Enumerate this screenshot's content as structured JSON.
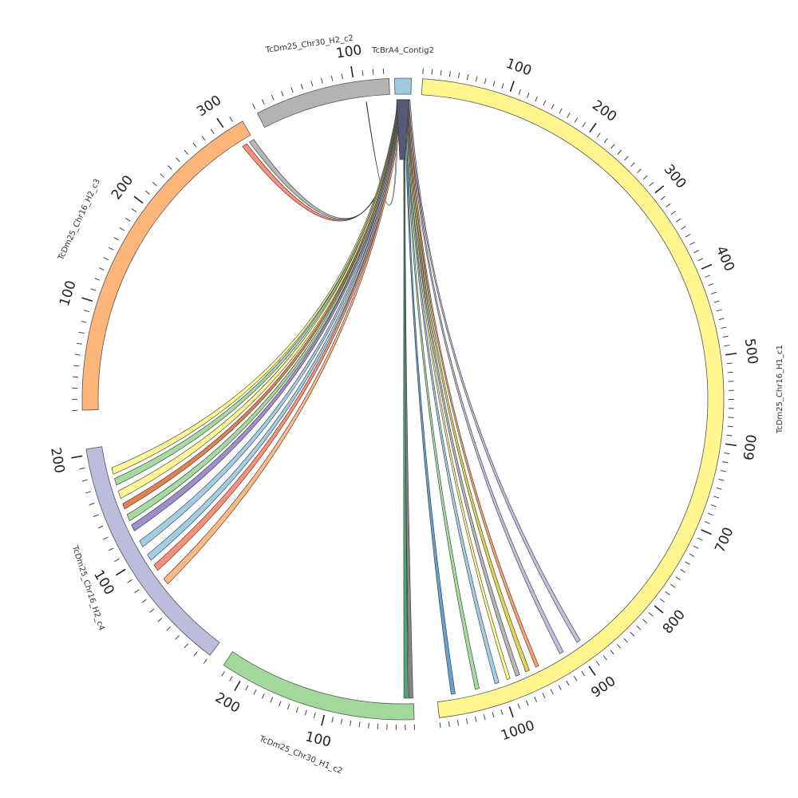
{
  "diagram": {
    "type": "circos",
    "segments": [
      {
        "id": "contig2",
        "name": "TcBrA4_Contig2",
        "length": 6,
        "color": "#9ecae1",
        "ticks": []
      },
      {
        "id": "h1c1",
        "name": "TcDm25_Chr16_H1_c1",
        "length": 1080,
        "color": "#fff68f",
        "ticks": [
          100,
          200,
          300,
          400,
          500,
          600,
          700,
          800,
          900,
          1000
        ]
      },
      {
        "id": "h1c2",
        "name": "TcDm25_Chr30_H1_c2",
        "length": 225,
        "color": "#a1d99b",
        "ticks": [
          100,
          200
        ]
      },
      {
        "id": "h2c4",
        "name": "TcDm25_Chr16_H2_c4",
        "length": 205,
        "color": "#bcbddc",
        "ticks": [
          100,
          200
        ]
      },
      {
        "id": "h2c3",
        "name": "TcDm25_Chr16_H2_c3",
        "length": 318,
        "color": "#fdb57a",
        "ticks": [
          100,
          200,
          300
        ]
      },
      {
        "id": "h2c2",
        "name": "TcDm25_Chr30_H2_c2",
        "length": 135,
        "color": "#b3b3b3",
        "ticks": [
          100
        ]
      }
    ],
    "links": [
      {
        "target": "h2c2",
        "pos": 110,
        "width": 0.5,
        "color": "#ffffff"
      },
      {
        "target": "h2c3",
        "pos": 316,
        "width": 5,
        "color": "#b3b3b3"
      },
      {
        "target": "h2c3",
        "pos": 308,
        "width": 5,
        "color": "#fb8a72"
      },
      {
        "target": "h2c4",
        "pos": 182,
        "width": 6,
        "color": "#fff68f"
      },
      {
        "target": "h2c4",
        "pos": 172,
        "width": 6,
        "color": "#a1d99b"
      },
      {
        "target": "h2c4",
        "pos": 160,
        "width": 7,
        "color": "#fff68f"
      },
      {
        "target": "h2c4",
        "pos": 149,
        "width": 5,
        "color": "#e07b45"
      },
      {
        "target": "h2c4",
        "pos": 138,
        "width": 6,
        "color": "#a1d99b"
      },
      {
        "target": "h2c4",
        "pos": 128,
        "width": 6,
        "color": "#9a88c8"
      },
      {
        "target": "h2c4",
        "pos": 112,
        "width": 6,
        "color": "#9ecae1"
      },
      {
        "target": "h2c4",
        "pos": 98,
        "width": 6,
        "color": "#9ecae1"
      },
      {
        "target": "h2c4",
        "pos": 87,
        "width": 6,
        "color": "#fb8a72"
      },
      {
        "target": "h2c4",
        "pos": 72,
        "width": 6,
        "color": "#fdb57a"
      },
      {
        "target": "h1c2",
        "pos": 3,
        "width": 5,
        "color": "#808080"
      },
      {
        "target": "h1c2",
        "pos": 9,
        "width": 5,
        "color": "#4aa072"
      },
      {
        "target": "h1c1",
        "pos": 1060,
        "width": 5,
        "color": "#5c9cd0"
      },
      {
        "target": "h1c1",
        "pos": 1030,
        "width": 5,
        "color": "#a1d99b"
      },
      {
        "target": "h1c1",
        "pos": 1005,
        "width": 5,
        "color": "#9ecae1"
      },
      {
        "target": "h1c1",
        "pos": 990,
        "width": 4,
        "color": "#fff68f"
      },
      {
        "target": "h1c1",
        "pos": 978,
        "width": 5,
        "color": "#b3b3b3"
      },
      {
        "target": "h1c1",
        "pos": 965,
        "width": 5,
        "color": "#e0d24a"
      },
      {
        "target": "h1c1",
        "pos": 952,
        "width": 4,
        "color": "#fb9c64"
      },
      {
        "target": "h1c1",
        "pos": 918,
        "width": 5,
        "color": "#bcbddc"
      },
      {
        "target": "h1c1",
        "pos": 893,
        "width": 5,
        "color": "#bcbddc"
      }
    ],
    "contig_fill": "#565a7a"
  }
}
